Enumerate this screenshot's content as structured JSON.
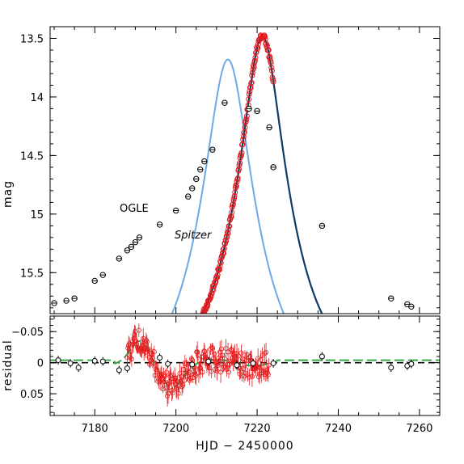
{
  "chart_data": [
    {
      "type": "scatter",
      "panel": "top",
      "xlabel": "",
      "ylabel": "mag",
      "xlim": [
        7169,
        7265
      ],
      "ylim": [
        15.85,
        13.4
      ],
      "y_inverted": true,
      "y_ticks": [
        13.5,
        14,
        14.5,
        15,
        15.5
      ],
      "y_tick_labels": [
        "13.5",
        "14",
        "14.5",
        "15",
        "15.5"
      ],
      "annotations": [
        {
          "text": "OGLE",
          "x": 7183,
          "y": 15.0
        },
        {
          "text": "Spitzer",
          "x": 7195,
          "y": 15.12,
          "italic": true
        }
      ],
      "colors": {
        "ogle_model": "#6fa8e8",
        "spitzer_model": "#0d3b66",
        "spitzer_points": "#e31a1c",
        "ogle_points": "#000000",
        "green_model": "#35a84a"
      },
      "series": [
        {
          "name": "OGLE",
          "role": "data",
          "color": "#000000",
          "x": [
            7170,
            7173,
            7175,
            7180,
            7182,
            7186,
            7188,
            7189,
            7190,
            7191,
            7196,
            7200,
            7203,
            7204,
            7205,
            7206,
            7207,
            7209,
            7212,
            7218,
            7220,
            7223,
            7224,
            7236,
            7253,
            7257,
            7258
          ],
          "y": [
            15.76,
            15.74,
            15.72,
            15.57,
            15.52,
            15.38,
            15.31,
            15.28,
            15.24,
            15.2,
            15.09,
            14.97,
            14.85,
            14.78,
            14.7,
            14.62,
            14.55,
            14.45,
            14.05,
            14.1,
            14.12,
            14.26,
            14.6,
            15.1,
            15.72,
            15.77,
            15.79
          ]
        },
        {
          "name": "Spitzer",
          "role": "data",
          "color": "#e31a1c",
          "x_range": [
            7188,
            7224
          ],
          "points": 310
        }
      ]
    },
    {
      "type": "scatter",
      "panel": "bottom",
      "xlabel": "HJD − 2450000",
      "ylabel": "residual",
      "xlim": [
        7169,
        7265
      ],
      "ylim": [
        0.085,
        -0.075
      ],
      "y_inverted": true,
      "x_ticks": [
        7180,
        7200,
        7220,
        7240,
        7260
      ],
      "x_tick_labels": [
        "7180",
        "7200",
        "7220",
        "7240",
        "7260"
      ],
      "y_ticks": [
        -0.05,
        0,
        0.05
      ],
      "y_tick_labels": [
        "−0.05",
        "0",
        "0.05"
      ],
      "series": [
        {
          "name": "OGLE",
          "role": "residual",
          "color": "#000000",
          "x": [
            7171,
            7174,
            7176,
            7180,
            7182,
            7186,
            7188,
            7196,
            7198,
            7204,
            7208,
            7215,
            7219,
            7224,
            7236,
            7253,
            7257,
            7258
          ],
          "y": [
            -0.004,
            0.001,
            0.008,
            -0.003,
            -0.002,
            0.012,
            0.009,
            -0.008,
            0.002,
            0.003,
            -0.002,
            0.004,
            0.001,
            0.001,
            -0.01,
            0.008,
            0.005,
            0.002
          ]
        },
        {
          "name": "Spitzer",
          "role": "residual",
          "color": "#e31a1c",
          "x_range": [
            7188,
            7223
          ]
        }
      ]
    }
  ]
}
